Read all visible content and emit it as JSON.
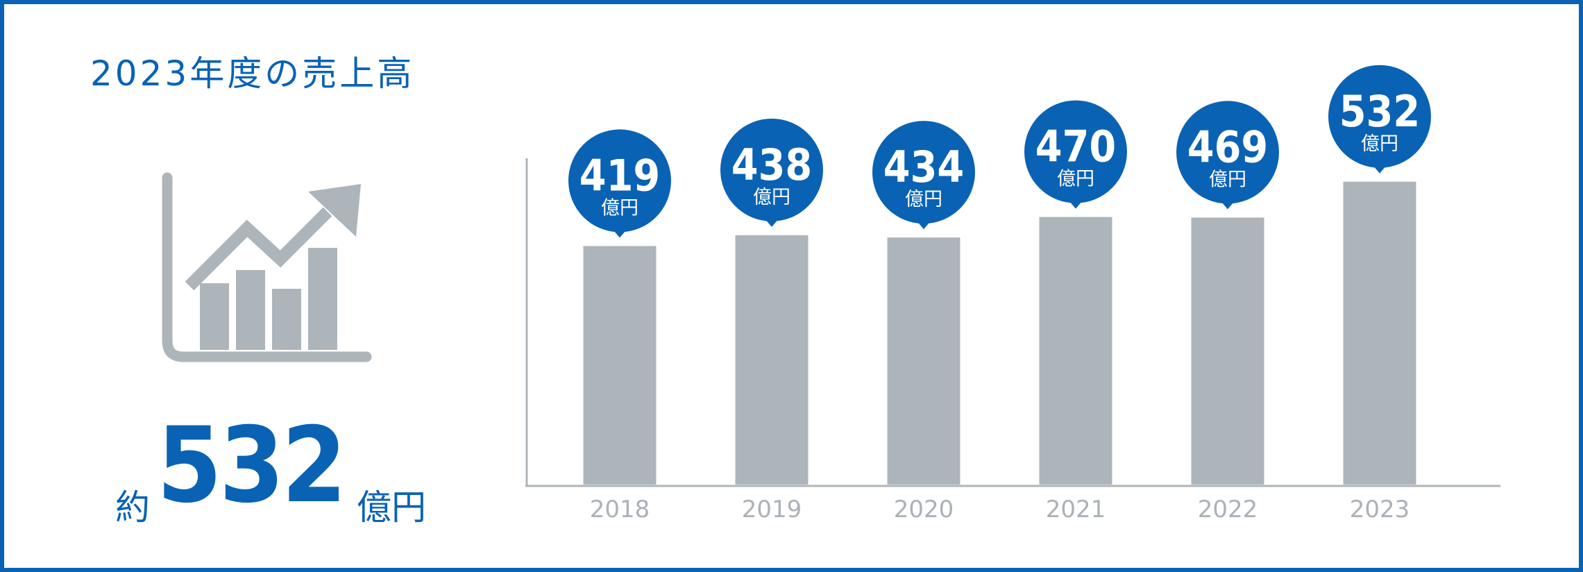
{
  "title": "2023年度の売上高",
  "summary": {
    "prefix": "約",
    "value": "532",
    "unit": "億円"
  },
  "icon": "growth-chart-icon",
  "colors": {
    "accent": "#0a62b4",
    "bar": "#adb5ba",
    "axis": "#adb5ba",
    "tick_label": "#aab2b7"
  },
  "chart_data": {
    "type": "bar",
    "categories": [
      "2018",
      "2019",
      "2020",
      "2021",
      "2022",
      "2023"
    ],
    "values": [
      419,
      438,
      434,
      470,
      469,
      532
    ],
    "unit": "億円",
    "title": "",
    "xlabel": "",
    "ylabel": "",
    "ylim": [
      0,
      560
    ],
    "grid": false,
    "data_labels": true
  }
}
